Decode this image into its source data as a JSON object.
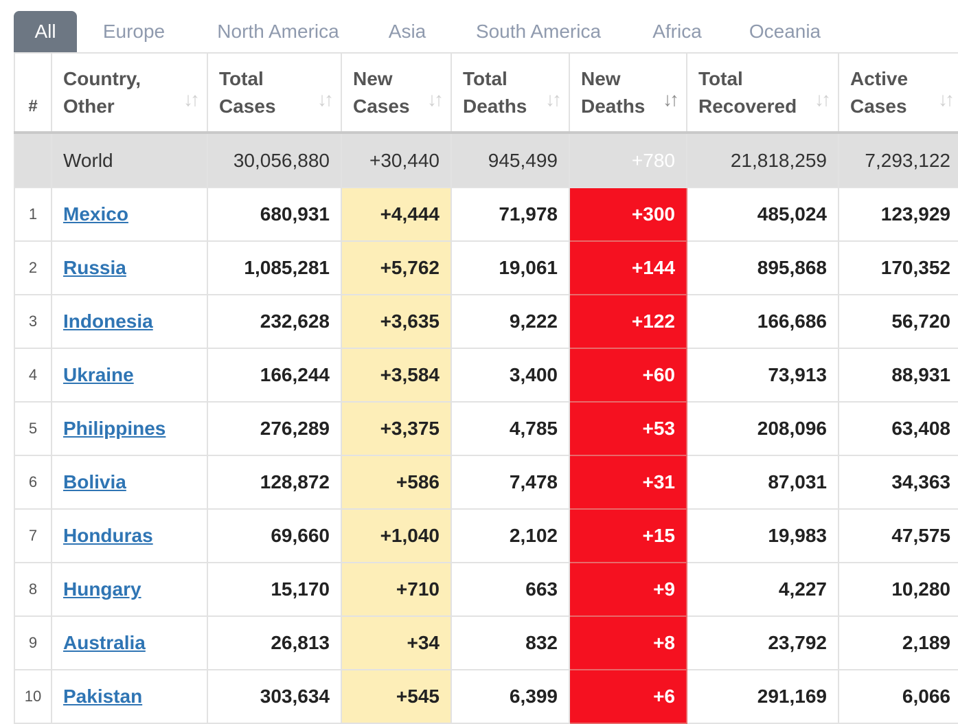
{
  "tabs": [
    {
      "label": "All",
      "active": true
    },
    {
      "label": "Europe"
    },
    {
      "label": "North America"
    },
    {
      "label": "Asia"
    },
    {
      "label": "South America"
    },
    {
      "label": "Africa"
    },
    {
      "label": "Oceania"
    }
  ],
  "headers": {
    "rank": "#",
    "country": [
      "Country,",
      "Other"
    ],
    "total_cases": [
      "Total",
      "Cases"
    ],
    "new_cases": [
      "New",
      "Cases"
    ],
    "total_deaths": [
      "Total",
      "Deaths"
    ],
    "new_deaths": [
      "New",
      "Deaths"
    ],
    "total_recovered": [
      "Total",
      "Recovered"
    ],
    "active_cases": [
      "Active",
      "Cases"
    ],
    "sort_icon_glyph": "↓↑",
    "sorted_column": "new_deaths"
  },
  "world": {
    "country": "World",
    "total_cases": "30,056,880",
    "new_cases": "+30,440",
    "total_deaths": "945,499",
    "new_deaths": "+780",
    "total_recovered": "21,818,259",
    "active_cases": "7,293,122"
  },
  "rows": [
    {
      "rank": "1",
      "country": "Mexico",
      "total_cases": "680,931",
      "new_cases": "+4,444",
      "total_deaths": "71,978",
      "new_deaths": "+300",
      "total_recovered": "485,024",
      "active_cases": "123,929"
    },
    {
      "rank": "2",
      "country": "Russia",
      "total_cases": "1,085,281",
      "new_cases": "+5,762",
      "total_deaths": "19,061",
      "new_deaths": "+144",
      "total_recovered": "895,868",
      "active_cases": "170,352"
    },
    {
      "rank": "3",
      "country": "Indonesia",
      "total_cases": "232,628",
      "new_cases": "+3,635",
      "total_deaths": "9,222",
      "new_deaths": "+122",
      "total_recovered": "166,686",
      "active_cases": "56,720"
    },
    {
      "rank": "4",
      "country": "Ukraine",
      "total_cases": "166,244",
      "new_cases": "+3,584",
      "total_deaths": "3,400",
      "new_deaths": "+60",
      "total_recovered": "73,913",
      "active_cases": "88,931"
    },
    {
      "rank": "5",
      "country": "Philippines",
      "total_cases": "276,289",
      "new_cases": "+3,375",
      "total_deaths": "4,785",
      "new_deaths": "+53",
      "total_recovered": "208,096",
      "active_cases": "63,408"
    },
    {
      "rank": "6",
      "country": "Bolivia",
      "total_cases": "128,872",
      "new_cases": "+586",
      "total_deaths": "7,478",
      "new_deaths": "+31",
      "total_recovered": "87,031",
      "active_cases": "34,363"
    },
    {
      "rank": "7",
      "country": "Honduras",
      "total_cases": "69,660",
      "new_cases": "+1,040",
      "total_deaths": "2,102",
      "new_deaths": "+15",
      "total_recovered": "19,983",
      "active_cases": "47,575"
    },
    {
      "rank": "8",
      "country": "Hungary",
      "total_cases": "15,170",
      "new_cases": "+710",
      "total_deaths": "663",
      "new_deaths": "+9",
      "total_recovered": "4,227",
      "active_cases": "10,280"
    },
    {
      "rank": "9",
      "country": "Australia",
      "total_cases": "26,813",
      "new_cases": "+34",
      "total_deaths": "832",
      "new_deaths": "+8",
      "total_recovered": "23,792",
      "active_cases": "2,189"
    },
    {
      "rank": "10",
      "country": "Pakistan",
      "total_cases": "303,634",
      "new_cases": "+545",
      "total_deaths": "6,399",
      "new_deaths": "+6",
      "total_recovered": "291,169",
      "active_cases": "6,066"
    }
  ],
  "colors": {
    "active_tab_bg": "#6d7783",
    "tab_text": "#8f9aae",
    "world_row_bg": "#dfdfdf",
    "new_cases_bg": "#fdeeb8",
    "new_deaths_bg": "#f51120",
    "link": "#2f75b4"
  }
}
